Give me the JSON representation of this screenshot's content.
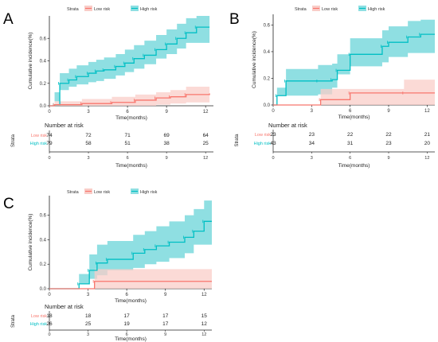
{
  "colors": {
    "low": "#f8766d",
    "high": "#00bfc4",
    "low_fill": "#f9cdc8",
    "high_fill": "#8fdfe2",
    "overlap": "#a4b2b2"
  },
  "chart_data": [
    {
      "panel": "A",
      "type": "line",
      "legend_title": "Strata",
      "xlabel": "Time(months)",
      "ylabel": "Cumulative incidence(%)",
      "xlim": [
        0,
        12.6
      ],
      "ylim": [
        0,
        0.8
      ],
      "x_ticks": [
        0,
        3,
        6,
        9,
        12
      ],
      "x_tick_labels": [
        "0",
        "3",
        "6",
        "9",
        "12"
      ],
      "y_ticks": [
        0,
        0.2,
        0.4,
        0.6
      ],
      "y_tick_labels": [
        "0.0",
        "0.2",
        "0.4",
        "0.6"
      ],
      "series": [
        {
          "name": "Low risk",
          "key": "low",
          "x": [
            0,
            0.4,
            2.5,
            4.8,
            6.6,
            8.2,
            9.3,
            10.5,
            12.3
          ],
          "y": [
            0,
            0.01,
            0.02,
            0.03,
            0.05,
            0.07,
            0.08,
            0.1,
            0.11
          ],
          "lower": [
            0,
            0,
            0,
            0,
            0,
            0,
            0.01,
            0.02,
            0.03
          ],
          "upper": [
            0,
            0.04,
            0.06,
            0.08,
            0.1,
            0.12,
            0.14,
            0.17,
            0.19
          ]
        },
        {
          "name": "High risk",
          "key": "high",
          "x": [
            0,
            0.4,
            0.8,
            1.5,
            2.1,
            3.0,
            3.6,
            4.2,
            5.1,
            5.8,
            6.5,
            7.3,
            8.2,
            9.0,
            9.8,
            10.5,
            11.3,
            12.3
          ],
          "y": [
            0,
            0.01,
            0.2,
            0.23,
            0.26,
            0.29,
            0.31,
            0.32,
            0.35,
            0.38,
            0.42,
            0.45,
            0.5,
            0.55,
            0.6,
            0.65,
            0.7,
            0.7
          ],
          "lower": [
            0,
            0,
            0.12,
            0.14,
            0.17,
            0.19,
            0.21,
            0.22,
            0.24,
            0.27,
            0.3,
            0.33,
            0.37,
            0.42,
            0.46,
            0.51,
            0.56,
            0.56
          ],
          "upper": [
            0,
            0.04,
            0.29,
            0.33,
            0.36,
            0.39,
            0.41,
            0.43,
            0.46,
            0.5,
            0.54,
            0.58,
            0.63,
            0.68,
            0.73,
            0.78,
            0.8,
            0.8
          ]
        }
      ],
      "risk_table": {
        "title": "Number at risk",
        "strata_label": "Strata",
        "times": [
          0,
          3,
          6,
          9,
          12
        ],
        "rows": [
          {
            "name": "Low risk",
            "key": "low",
            "values": [
              74,
              72,
              71,
              69,
              64
            ]
          },
          {
            "name": "High risk",
            "key": "high",
            "values": [
              79,
              58,
              51,
              38,
              25
            ]
          }
        ]
      }
    },
    {
      "panel": "B",
      "type": "line",
      "legend_title": "Strata",
      "xlabel": "Time(months)",
      "ylabel": "Cumulative incidence(%)",
      "xlim": [
        0,
        12.6
      ],
      "ylim": [
        0,
        0.68
      ],
      "x_ticks": [
        0,
        3,
        6,
        9,
        12
      ],
      "x_tick_labels": [
        "0",
        "3",
        "6",
        "9",
        "12"
      ],
      "y_ticks": [
        0,
        0.2,
        0.4,
        0.6
      ],
      "y_tick_labels": [
        "0.0",
        "0.2",
        "0.4",
        "0.6"
      ],
      "series": [
        {
          "name": "Low risk",
          "key": "low",
          "x": [
            0,
            3.7,
            6.0,
            10.2,
            12.6
          ],
          "y": [
            0,
            0.04,
            0.09,
            0.09,
            0.09
          ],
          "lower": [
            0,
            0,
            0,
            0,
            0
          ],
          "upper": [
            0,
            0.12,
            0.12,
            0.19,
            0.19
          ]
        },
        {
          "name": "High risk",
          "key": "high",
          "x": [
            0,
            0.3,
            1.0,
            3.5,
            4.6,
            5.0,
            6.0,
            8.5,
            9.0,
            10.5,
            11.5,
            12.6
          ],
          "y": [
            0,
            0.07,
            0.18,
            0.18,
            0.19,
            0.26,
            0.38,
            0.44,
            0.47,
            0.51,
            0.53,
            0.53
          ],
          "lower": [
            0,
            0,
            0.07,
            0.07,
            0.08,
            0.13,
            0.23,
            0.29,
            0.32,
            0.36,
            0.39,
            0.39
          ],
          "upper": [
            0,
            0.13,
            0.27,
            0.3,
            0.31,
            0.38,
            0.5,
            0.56,
            0.59,
            0.63,
            0.64,
            0.64
          ]
        }
      ],
      "risk_table": {
        "title": "Number at risk",
        "strata_label": "Strata",
        "times": [
          0,
          3,
          6,
          9,
          12
        ],
        "rows": [
          {
            "name": "Low risk",
            "key": "low",
            "values": [
              23,
              23,
              22,
              22,
              21
            ]
          },
          {
            "name": "High risk",
            "key": "high",
            "values": [
              43,
              34,
              31,
              23,
              20
            ]
          }
        ]
      }
    },
    {
      "panel": "C",
      "type": "line",
      "legend_title": "Strata",
      "xlabel": "Time(months)",
      "ylabel": "Cumulative incidence(%)",
      "xlim": [
        0,
        12.6
      ],
      "ylim": [
        0,
        0.76
      ],
      "x_ticks": [
        0,
        3,
        6,
        9,
        12
      ],
      "x_tick_labels": [
        "0",
        "3",
        "6",
        "9",
        "12"
      ],
      "y_ticks": [
        0,
        0.2,
        0.4,
        0.6
      ],
      "y_tick_labels": [
        "0.0",
        "0.2",
        "0.4",
        "0.6"
      ],
      "series": [
        {
          "name": "Low risk",
          "key": "low",
          "x": [
            0,
            3.5,
            12.6
          ],
          "y": [
            0,
            0.06,
            0.06
          ],
          "lower": [
            0,
            0,
            0
          ],
          "upper": [
            0,
            0.16,
            0.16
          ]
        },
        {
          "name": "High risk",
          "key": "high",
          "x": [
            0,
            2.3,
            3.1,
            3.7,
            4.5,
            6.5,
            7.4,
            8.3,
            9.3,
            10.5,
            11.2,
            12.0,
            12.6
          ],
          "y": [
            0,
            0.04,
            0.15,
            0.21,
            0.24,
            0.29,
            0.32,
            0.35,
            0.38,
            0.42,
            0.47,
            0.55,
            0.55
          ],
          "lower": [
            0,
            0,
            0.04,
            0.08,
            0.11,
            0.15,
            0.17,
            0.2,
            0.22,
            0.25,
            0.29,
            0.36,
            0.36
          ],
          "upper": [
            0,
            0.12,
            0.28,
            0.36,
            0.39,
            0.44,
            0.47,
            0.51,
            0.55,
            0.6,
            0.65,
            0.72,
            0.72
          ]
        }
      ],
      "risk_table": {
        "title": "Number at risk",
        "strata_label": "Strata",
        "times": [
          0,
          3,
          6,
          9,
          12
        ],
        "rows": [
          {
            "name": "Low risk",
            "key": "low",
            "values": [
              18,
              18,
              17,
              17,
              15
            ]
          },
          {
            "name": "High risk",
            "key": "high",
            "values": [
              26,
              25,
              19,
              17,
              12
            ]
          }
        ]
      }
    }
  ]
}
